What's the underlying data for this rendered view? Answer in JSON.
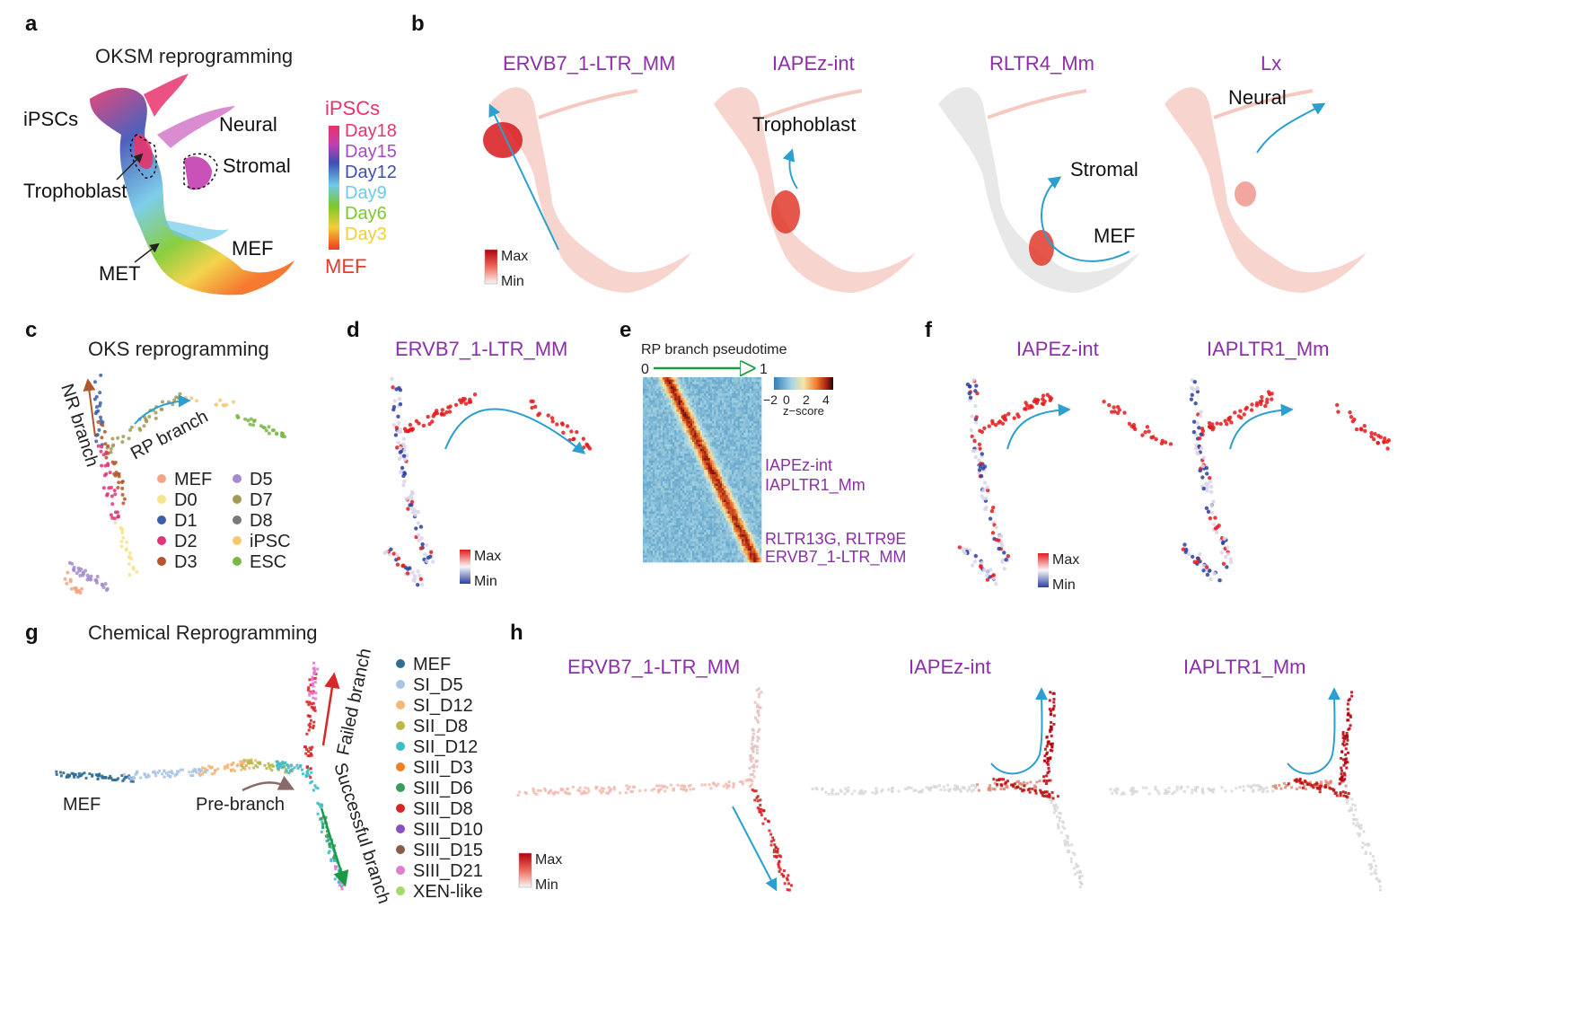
{
  "panel_letters": {
    "a": "a",
    "b": "b",
    "c": "c",
    "d": "d",
    "e": "e",
    "f": "f",
    "g": "g",
    "h": "h"
  },
  "panel_a": {
    "title": "OKSM reprogramming",
    "labels": {
      "ipscs": "iPSCs",
      "neural": "Neural",
      "stromal": "Stromal",
      "trophoblast": "Trophoblast",
      "met": "MET",
      "mef": "MEF"
    },
    "scale": {
      "top": "iPSCs",
      "bottom": "MEF",
      "days": [
        "Day18",
        "Day15",
        "Day12",
        "Day9",
        "Day6",
        "Day3"
      ],
      "day_colors": [
        "#e8336b",
        "#a64bc8",
        "#3c4fb4",
        "#6fc9e8",
        "#7cc82b",
        "#f2cf3a"
      ]
    }
  },
  "panel_b": {
    "genes": [
      "ERVB7_1-LTR_MM",
      "IAPEz-int",
      "RLTR4_Mm",
      "Lx"
    ],
    "labels": {
      "trophoblast": "Trophoblast",
      "stromal": "Stromal",
      "mef": "MEF",
      "neural": "Neural"
    },
    "scale": {
      "max": "Max",
      "min": "Min"
    }
  },
  "panel_c": {
    "title": "OKS reprogramming",
    "nr_branch": "NR branch",
    "rp_branch": "RP branch",
    "legend": [
      {
        "label": "MEF",
        "color": "#f4a582"
      },
      {
        "label": "D5",
        "color": "#a28ccd"
      },
      {
        "label": "D0",
        "color": "#f7e38a"
      },
      {
        "label": "D7",
        "color": "#a09a55"
      },
      {
        "label": "D1",
        "color": "#3c5fa8"
      },
      {
        "label": "D8",
        "color": "#7a7a7a"
      },
      {
        "label": "D2",
        "color": "#e0337a"
      },
      {
        "label": "iPSC",
        "color": "#f4c96a"
      },
      {
        "label": "D3",
        "color": "#b3562a"
      },
      {
        "label": "ESC",
        "color": "#7ab648"
      }
    ]
  },
  "panel_d": {
    "gene": "ERVB7_1-LTR_MM",
    "scale": {
      "max": "Max",
      "min": "Min"
    }
  },
  "panel_e": {
    "title": "RP branch pseudotime",
    "start": "0",
    "end": "1",
    "colorbar": {
      "ticks": [
        "−2",
        "0",
        "2",
        "4"
      ],
      "label": "z−score"
    },
    "genes": [
      "IAPEz-int",
      "IAPLTR1_Mm",
      "RLTR13G, RLTR9E",
      "ERVB7_1-LTR_MM"
    ]
  },
  "panel_f": {
    "genes": [
      "IAPEz-int",
      "IAPLTR1_Mm"
    ],
    "scale": {
      "max": "Max",
      "min": "Min"
    }
  },
  "panel_g": {
    "title": "Chemical Reprogramming",
    "labels": {
      "mef": "MEF",
      "prebranch": "Pre-branch",
      "failed": "Failed branch",
      "successful": "Successful branch"
    },
    "legend": [
      {
        "label": "MEF",
        "color": "#2f6d94"
      },
      {
        "label": "SI_D5",
        "color": "#a8c4e6"
      },
      {
        "label": "SI_D12",
        "color": "#f5b678"
      },
      {
        "label": "SII_D8",
        "color": "#b9b84a"
      },
      {
        "label": "SII_D12",
        "color": "#3fbcc8"
      },
      {
        "label": "SIII_D3",
        "color": "#ef7f1f"
      },
      {
        "label": "SIII_D6",
        "color": "#3c9a5a"
      },
      {
        "label": "SIII_D8",
        "color": "#d62828"
      },
      {
        "label": "SIII_D10",
        "color": "#8a4fb8"
      },
      {
        "label": "SIII_D15",
        "color": "#8a5a4a"
      },
      {
        "label": "SIII_D21",
        "color": "#e27ad0"
      },
      {
        "label": "XEN-like",
        "color": "#a6d96a"
      }
    ]
  },
  "panel_h": {
    "genes": [
      "ERVB7_1-LTR_MM",
      "IAPEz-int",
      "IAPLTR1_Mm"
    ],
    "scale": {
      "max": "Max",
      "min": "Min"
    }
  },
  "colors": {
    "gene_text": "#8b2fa8",
    "arrow": "#2a9fd0",
    "red": "#d7191c"
  }
}
